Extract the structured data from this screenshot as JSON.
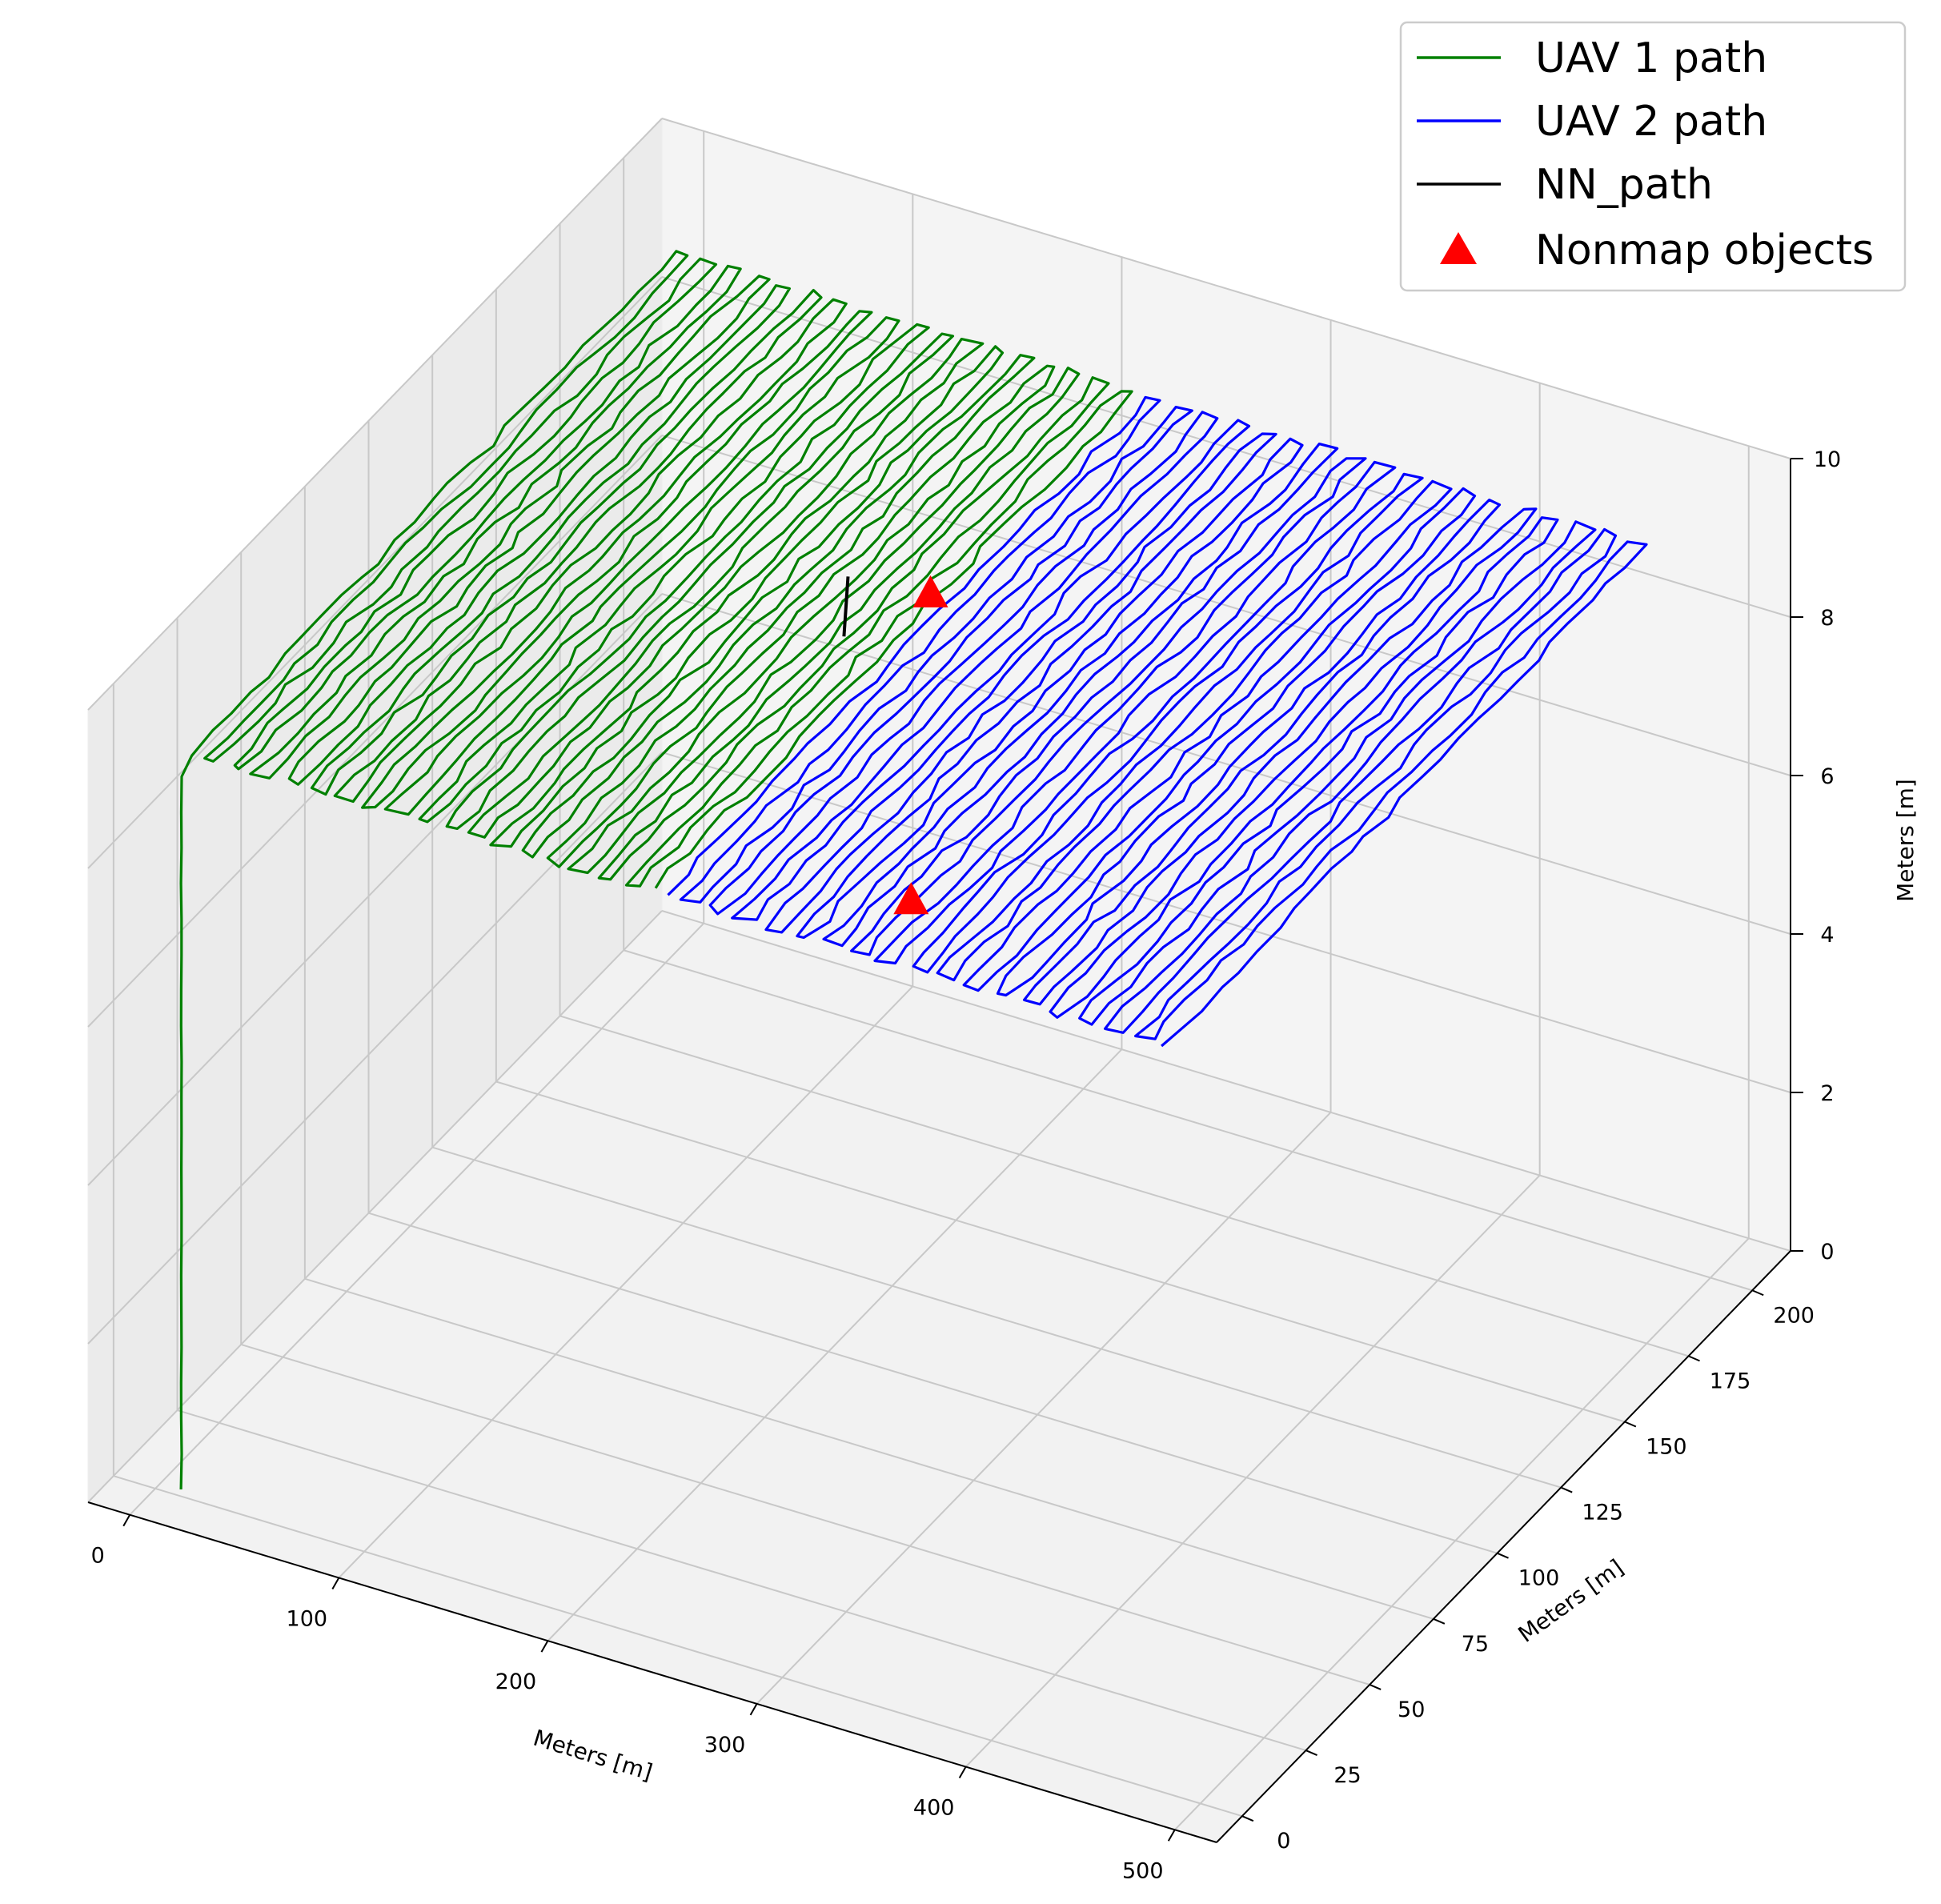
{
  "chart_data": {
    "type": "line",
    "projection": "3d",
    "title": "",
    "xlabel": "Meters [m]",
    "ylabel": "Meters [m]",
    "zlabel": "Meters [m]",
    "xlim": [
      -20,
      520
    ],
    "ylim": [
      -10,
      215
    ],
    "zlim": [
      0,
      10
    ],
    "x_ticks": [
      0,
      100,
      200,
      300,
      400,
      500
    ],
    "y_ticks": [
      0,
      25,
      50,
      75,
      100,
      125,
      150,
      175,
      200
    ],
    "z_ticks": [
      0,
      2,
      4,
      6,
      8,
      10
    ],
    "grid": true,
    "legend_position": "top-right",
    "series": [
      {
        "name": "UAV 1 path",
        "kind": "line",
        "color": "#008000",
        "description": "climb from ground to 9 m then boustrophedon sweep over x 0-225, y 10-200",
        "takeoff": {
          "x": 10,
          "y": 2,
          "z_start": 0,
          "z_end": 9
        },
        "sweep": {
          "x_range": [
            5,
            225
          ],
          "y_range": [
            10,
            200
          ],
          "lanes": 36,
          "z": 9
        }
      },
      {
        "name": "UAV 2 path",
        "kind": "line",
        "color": "#0000ff",
        "description": "boustrophedon sweep over x 230-470, y 10-200 at 9 m altitude",
        "sweep": {
          "x_range": [
            232,
            470
          ],
          "y_range": [
            10,
            200
          ],
          "lanes": 36,
          "z": 9
        }
      },
      {
        "name": "NN_path",
        "kind": "line",
        "color": "#000000",
        "points": [
          [
            185,
            120,
            9
          ],
          [
            205,
            102,
            9
          ]
        ]
      },
      {
        "name": "Nonmap objects",
        "kind": "scatter",
        "marker": "triangle",
        "color": "#ff0000",
        "points": [
          [
            222,
            122,
            9
          ],
          [
            325,
            30,
            9
          ]
        ]
      }
    ]
  }
}
